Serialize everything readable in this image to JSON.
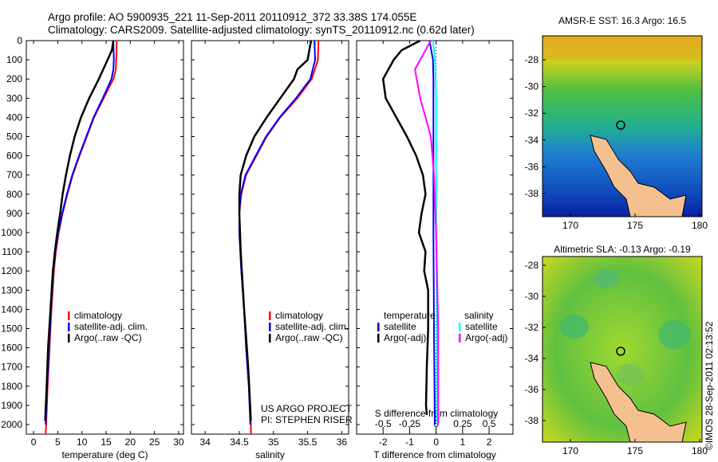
{
  "title_line1": "Argo profile: AO 5900935_221 11-Sep-2011 20110912_372 33.38S 174.055E",
  "title_line2": "Climatology: CARS2009. Satellite-adjusted climatology: synTS_20110912.nc (0.62d later)",
  "credit": "©IMOS 28-Sep-2011 02:13:52",
  "project_line1": "US ARGO PROJECT",
  "project_line2": "PI: STEPHEN RISER",
  "colors": {
    "climatology": "#ff0000",
    "satellite": "#0000ff",
    "argo": "#000000",
    "s_satellite": "#00ffff",
    "s_argo": "#ff00ff"
  },
  "chart_data": [
    {
      "type": "line",
      "xlabel": "temperature (deg C)",
      "ylabel": "",
      "xlim": [
        -1.5,
        31
      ],
      "ylim": [
        2050,
        0
      ],
      "xticks": [
        "0",
        "5",
        "10",
        "15",
        "20",
        "25",
        "30"
      ],
      "xtick_values": [
        0,
        5,
        10,
        15,
        20,
        25,
        30
      ],
      "yticks": [
        "0",
        "100",
        "200",
        "300",
        "400",
        "500",
        "600",
        "700",
        "800",
        "900",
        "1000",
        "1100",
        "1200",
        "1300",
        "1400",
        "1500",
        "1600",
        "1700",
        "1800",
        "1900",
        "2000"
      ],
      "legend": [
        "climatology",
        "satellite-adj. clim.",
        "Argo(..raw -QC)"
      ],
      "series": [
        {
          "name": "climatology",
          "color": "#ff0000",
          "depth": [
            0,
            100,
            150,
            200,
            300,
            400,
            500,
            600,
            700,
            800,
            900,
            1000,
            1100,
            1200,
            1400,
            1600,
            1800,
            2000,
            2050
          ],
          "values": [
            17.2,
            17.1,
            17.0,
            16.5,
            14.5,
            12.5,
            11.0,
            9.5,
            8.1,
            7.0,
            6.0,
            5.2,
            4.6,
            4.2,
            3.7,
            3.3,
            2.9,
            2.6,
            2.5
          ]
        },
        {
          "name": "satellite-adj. clim.",
          "color": "#0000ff",
          "depth": [
            0,
            100,
            150,
            200,
            300,
            400,
            500,
            600,
            700,
            800,
            900,
            1000,
            1100,
            1200,
            1400,
            1600,
            1800,
            2000
          ],
          "values": [
            16.5,
            16.6,
            16.5,
            16.1,
            14.3,
            12.4,
            10.9,
            9.4,
            8.0,
            6.9,
            5.9,
            5.1,
            4.5,
            4.1,
            3.6,
            3.2,
            2.8,
            2.5
          ]
        },
        {
          "name": "Argo(..raw -QC)",
          "color": "#000000",
          "depth": [
            0,
            50,
            100,
            200,
            300,
            400,
            500,
            600,
            700,
            800,
            900,
            1000,
            1100,
            1200,
            1400,
            1600,
            1800,
            1980
          ],
          "values": [
            16.5,
            16.2,
            15.3,
            13.5,
            11.5,
            9.8,
            8.5,
            7.5,
            6.7,
            6.0,
            5.5,
            4.9,
            4.4,
            4.0,
            3.5,
            3.0,
            2.7,
            2.4
          ]
        }
      ]
    },
    {
      "type": "line",
      "xlabel": "salinity",
      "ylabel": "",
      "xlim": [
        33.8,
        36.1
      ],
      "ylim": [
        2050,
        0
      ],
      "xticks": [
        "34",
        "34.5",
        "35",
        "35.5",
        "36"
      ],
      "xtick_values": [
        34,
        34.5,
        35,
        35.5,
        36
      ],
      "legend": [
        "climatology",
        "satellite-adj. clim.",
        "Argo(..raw -QC)"
      ],
      "series": [
        {
          "name": "climatology",
          "color": "#ff0000",
          "depth": [
            0,
            100,
            200,
            300,
            400,
            500,
            600,
            700,
            800,
            900,
            1000,
            1200,
            1400,
            1600,
            1800,
            2000,
            2050
          ],
          "values": [
            35.66,
            35.65,
            35.56,
            35.35,
            35.1,
            34.9,
            34.75,
            34.6,
            34.53,
            34.5,
            34.5,
            34.53,
            34.57,
            34.6,
            34.64,
            34.67,
            34.67
          ]
        },
        {
          "name": "satellite-adj. clim.",
          "color": "#0000ff",
          "depth": [
            0,
            100,
            200,
            300,
            400,
            500,
            600,
            700,
            800,
            900,
            1000,
            1200,
            1400,
            1600,
            1800,
            2000
          ],
          "values": [
            35.6,
            35.61,
            35.54,
            35.33,
            35.09,
            34.89,
            34.74,
            34.59,
            34.52,
            34.5,
            34.5,
            34.53,
            34.57,
            34.6,
            34.64,
            34.66
          ]
        },
        {
          "name": "Argo(..raw -QC)",
          "color": "#000000",
          "depth": [
            0,
            100,
            150,
            200,
            300,
            400,
            500,
            600,
            700,
            800,
            900,
            1100,
            1400,
            1700,
            1980
          ],
          "values": [
            35.55,
            35.5,
            35.35,
            35.3,
            35.1,
            34.9,
            34.72,
            34.6,
            34.52,
            34.5,
            34.5,
            34.52,
            34.57,
            34.63,
            34.67
          ]
        }
      ]
    },
    {
      "type": "line",
      "xlabel": "T difference from climatology",
      "x2label": "S difference from climatology",
      "xlim": [
        -3,
        2.9
      ],
      "x2lim": [
        -0.75,
        0.725
      ],
      "ylim": [
        2050,
        0
      ],
      "xticks": [
        "-2",
        "-1",
        "0",
        "1",
        "2"
      ],
      "xtick_values": [
        -2,
        -1,
        0,
        1,
        2
      ],
      "x2ticks": [
        "-0.5",
        "-0.25",
        "0",
        "0.25",
        "0.5"
      ],
      "x2tick_values": [
        -0.5,
        -0.25,
        0,
        0.25,
        0.5
      ],
      "legend_temperature_title": "temperature",
      "legend_salinity_title": "salinity",
      "legend": [
        "satellite",
        "Argo(-adj)",
        "satellite",
        "Argo(-adj)"
      ],
      "series": [
        {
          "name": "T satellite",
          "color": "#0000ff",
          "axis": "T",
          "depth": [
            0,
            100,
            200,
            300,
            600,
            1000,
            1500,
            2000
          ],
          "values": [
            -0.25,
            -0.12,
            -0.1,
            -0.1,
            -0.1,
            -0.1,
            -0.08,
            -0.05
          ]
        },
        {
          "name": "T Argo(-adj)",
          "color": "#000000",
          "axis": "T",
          "depth": [
            0,
            50,
            100,
            200,
            300,
            400,
            500,
            600,
            700,
            800,
            900,
            1000,
            1100,
            1200,
            1300,
            1500,
            1700,
            1900,
            1950
          ],
          "values": [
            -0.6,
            -1.3,
            -1.6,
            -2.0,
            -1.9,
            -1.5,
            -1.1,
            -0.75,
            -0.5,
            -0.4,
            -0.55,
            -0.65,
            -0.4,
            -0.45,
            -0.3,
            -0.3,
            -0.35,
            -0.38,
            -0.35
          ]
        },
        {
          "name": "S satellite",
          "color": "#00ffff",
          "axis": "S",
          "depth": [
            0,
            100,
            300,
            600,
            1000,
            1500,
            2000
          ],
          "values": [
            -0.03,
            -0.01,
            0,
            0,
            0,
            0.01,
            0.01
          ]
        },
        {
          "name": "S Argo(-adj)",
          "color": "#ff00ff",
          "axis": "S",
          "depth": [
            0,
            50,
            100,
            150,
            300,
            400,
            500,
            700,
            1000,
            1500,
            2000
          ],
          "values": [
            -0.05,
            -0.1,
            -0.15,
            -0.2,
            -0.15,
            -0.1,
            -0.05,
            -0.02,
            0,
            0.02,
            0.02
          ]
        }
      ]
    },
    {
      "type": "heatmap",
      "title": "AMSR-E SST: 16.3 Argo: 16.5",
      "xticks": [
        "170",
        "175",
        "180"
      ],
      "yticks": [
        "-28",
        "-30",
        "-32",
        "-34",
        "-36",
        "-38"
      ],
      "marker": {
        "lon": 174.055,
        "lat": -33.38
      }
    },
    {
      "type": "heatmap",
      "title": "Altimetric SLA: -0.13 Argo: -0.19",
      "xticks": [
        "170",
        "175",
        "180"
      ],
      "yticks": [
        "-28",
        "-30",
        "-32",
        "-34",
        "-36",
        "-38"
      ],
      "marker": {
        "lon": 174.055,
        "lat": -33.38
      }
    }
  ]
}
